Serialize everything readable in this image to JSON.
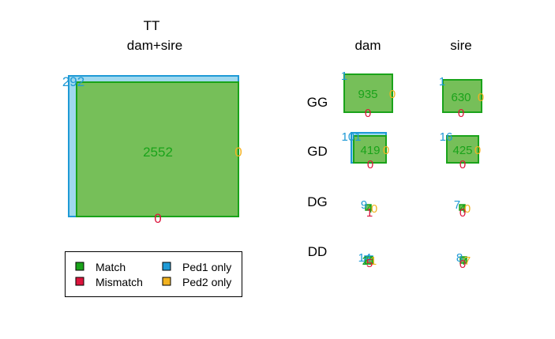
{
  "colors": {
    "match": "#1aa31a",
    "match_fill": "#76bf59",
    "mismatch": "#dc143c",
    "ped1": "#1f9ad6",
    "ped1_fill": "#9fd8ee",
    "ped2": "#f2b21f"
  },
  "title": "TT",
  "main_panel": {
    "label": "dam+sire",
    "match": "2552",
    "mismatch": "0",
    "ped1_only": "292",
    "ped2_only": "0"
  },
  "columns": [
    "dam",
    "sire"
  ],
  "rows": [
    "GG",
    "GD",
    "DG",
    "DD"
  ],
  "cells": {
    "GG": {
      "dam": {
        "match": "935",
        "mismatch": "0",
        "ped1_only": "1",
        "ped2_only": "0"
      },
      "sire": {
        "match": "630",
        "mismatch": "0",
        "ped1_only": "1",
        "ped2_only": "0"
      }
    },
    "GD": {
      "dam": {
        "match": "419",
        "mismatch": "0",
        "ped1_only": "101",
        "ped2_only": "0"
      },
      "sire": {
        "match": "425",
        "mismatch": "0",
        "ped1_only": "16",
        "ped2_only": "0"
      }
    },
    "DG": {
      "dam": {
        "match": "4",
        "mismatch": "1",
        "ped1_only": "9",
        "ped2_only": "0"
      },
      "sire": {
        "match": "4",
        "mismatch": "0",
        "ped1_only": "7",
        "ped2_only": "0"
      }
    },
    "DD": {
      "dam": {
        "match": "21",
        "mismatch": "5",
        "ped1_only": "14",
        "ped2_only": "1"
      },
      "sire": {
        "match": "7",
        "mismatch": "0",
        "ped1_only": "8",
        "ped2_only": "7"
      }
    }
  },
  "legend": {
    "match": "Match",
    "mismatch": "Mismatch",
    "ped1_only": "Ped1 only",
    "ped2_only": "Ped2 only"
  }
}
